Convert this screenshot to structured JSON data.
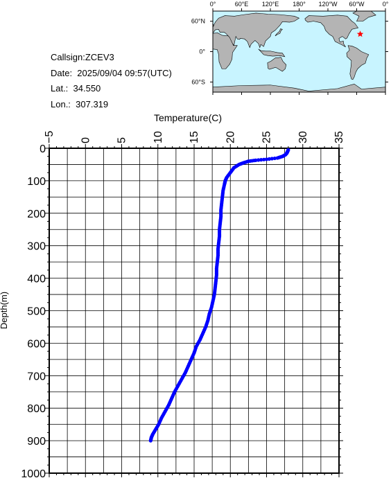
{
  "info": {
    "callsign": "Callsign:ZCEV3",
    "date": "Date:  2025/09/04 09:57(UTC)",
    "lat": "Lat.:  34.550",
    "lon": "Lon.:  307.319"
  },
  "map": {
    "top_ticks": [
      "0°",
      "60°E",
      "120°E",
      "180°",
      "120°W",
      "60°W",
      "0°"
    ],
    "lat_ticks": [
      "60°N",
      "0°",
      "60°S"
    ],
    "ocean_color": "#c8f4ff",
    "land_color": "#b4b4b4",
    "marker": {
      "lat": 34.55,
      "lon": 307.319,
      "color": "#ff0000",
      "icon": "star-icon"
    }
  },
  "chart_data": {
    "type": "scatter",
    "title": "",
    "xlabel": "Temperature(C)",
    "ylabel": "Depth(m)",
    "xlim": [
      -5,
      35
    ],
    "ylim": [
      1000,
      0
    ],
    "x_ticks": [
      "−5",
      "0",
      "5",
      "10",
      "15",
      "20",
      "25",
      "30",
      "35"
    ],
    "y_ticks": [
      "0",
      "100",
      "200",
      "300",
      "400",
      "500",
      "600",
      "700",
      "800",
      "900",
      "1000"
    ],
    "grid": true,
    "series_color": "#0000ff",
    "series": [
      {
        "x": [
          28.0,
          27.9,
          27.8,
          27.6,
          27.2,
          26.5,
          25.0,
          23.5,
          22.5,
          21.8,
          21.2,
          20.5,
          20.0,
          19.5,
          19.3,
          19.2,
          19.0,
          18.9,
          18.8,
          18.7,
          18.7,
          18.6,
          18.5,
          18.5,
          18.4,
          18.3,
          18.3,
          18.2,
          18.1,
          18.1,
          18.0,
          17.9,
          17.8,
          17.6,
          17.4,
          17.1,
          16.9,
          16.6,
          16.2,
          15.8,
          15.3,
          15.0,
          14.6,
          14.2,
          13.8,
          13.3,
          12.8,
          12.3,
          11.9,
          11.5,
          11.0,
          10.5,
          10.1,
          9.7,
          9.3,
          9.1,
          9.0
        ],
        "y": [
          5,
          10,
          15,
          20,
          25,
          30,
          34,
          37,
          40,
          45,
          50,
          60,
          75,
          90,
          100,
          110,
          130,
          150,
          170,
          190,
          210,
          230,
          250,
          270,
          290,
          310,
          330,
          350,
          370,
          390,
          410,
          430,
          450,
          470,
          490,
          510,
          530,
          550,
          570,
          590,
          610,
          630,
          650,
          670,
          690,
          710,
          730,
          750,
          770,
          790,
          810,
          830,
          850,
          865,
          880,
          890,
          900
        ]
      }
    ]
  }
}
